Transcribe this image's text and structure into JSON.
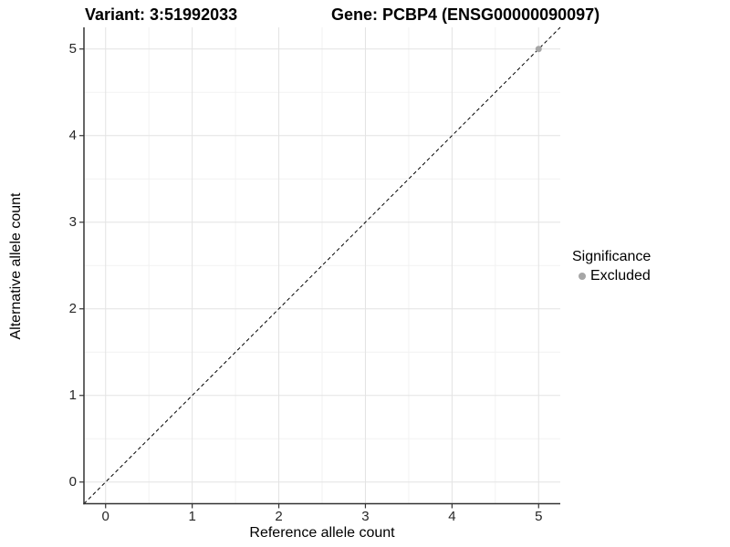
{
  "titles": {
    "variant": "Variant: 3:51992033",
    "gene": "Gene: PCBP4 (ENSG00000090097)"
  },
  "legend": {
    "title": "Significance",
    "items": [
      {
        "label": "Excluded",
        "color": "#a6a6a6"
      }
    ]
  },
  "colors": {
    "background": "#ffffff",
    "grid_major": "#e3e3e3",
    "grid_minor": "#f2f2f2",
    "axis_line": "#333333",
    "tick_label": "#262626",
    "reference_line": "#000000",
    "point": "#a6a6a6"
  },
  "chart_data": {
    "type": "scatter",
    "title": "Variant: 3:51992033 — Gene: PCBP4 (ENSG00000090097)",
    "xlabel": "Reference allele count",
    "ylabel": "Alternative allele count",
    "xlim": [
      -0.25,
      5.25
    ],
    "ylim": [
      -0.25,
      5.25
    ],
    "x_ticks": [
      0,
      1,
      2,
      3,
      4,
      5
    ],
    "y_ticks": [
      0,
      1,
      2,
      3,
      4,
      5
    ],
    "grid": "major+minor",
    "legend_position": "right",
    "series": [
      {
        "name": "Excluded",
        "color": "#a6a6a6",
        "points": [
          {
            "x": 5,
            "y": 5
          }
        ]
      }
    ],
    "reference_line": {
      "type": "identity",
      "slope": 1,
      "intercept": 0,
      "linestyle": "dashed",
      "color": "#000000"
    }
  }
}
